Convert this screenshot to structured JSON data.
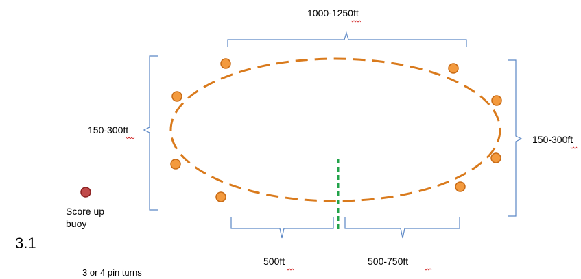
{
  "labels": {
    "top_width": "1000-1250ft",
    "left_height": "150-300ft",
    "right_height": "150-300ft",
    "bottom_left": "500ft",
    "bottom_right": "500-750ft",
    "score_up_line1": "Score up",
    "score_up_line2": "buoy",
    "pin_turns": "3 or 4 pin turns",
    "figure_number": "3.1"
  },
  "colors": {
    "course_line": "#d97a1c",
    "buoy_fill": "#f39a3e",
    "score_up_buoy": "#c04a4a",
    "centerline": "#22a34a",
    "brace": "#5b87c5"
  }
}
